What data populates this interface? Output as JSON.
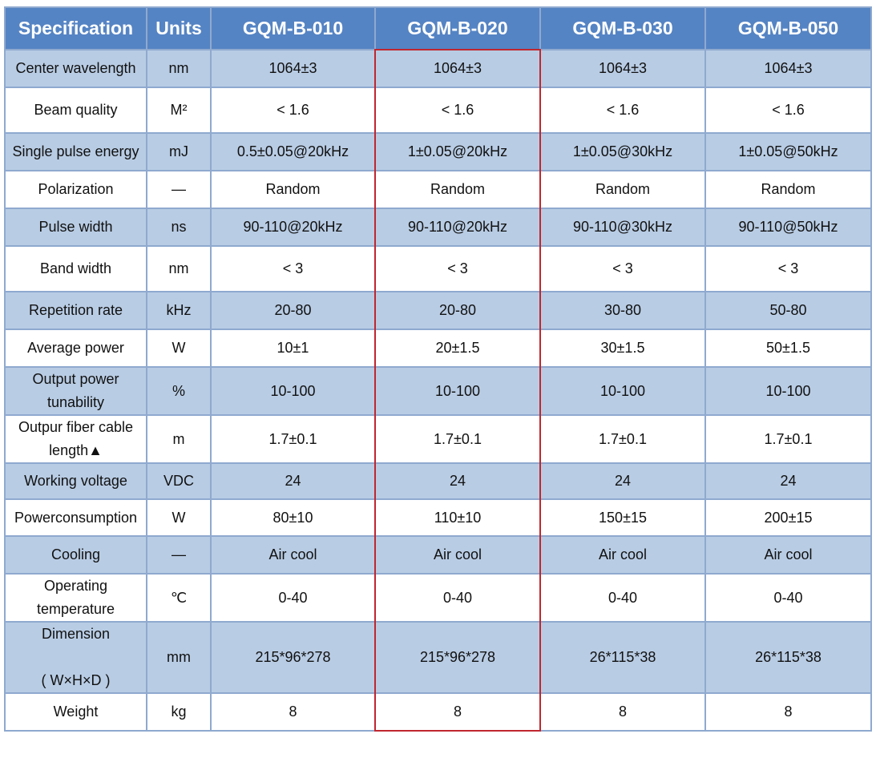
{
  "table": {
    "header": [
      "Specification",
      "Units",
      "GQM-B-010",
      "GQM-B-020",
      "GQM-B-030",
      "GQM-B-050"
    ],
    "highlight_column": 3,
    "rows": [
      [
        "Center wavelength",
        "nm",
        "1064±3",
        "1064±3",
        "1064±3",
        "1064±3"
      ],
      [
        "Beam quality",
        "M²",
        "< 1.6",
        "< 1.6",
        "< 1.6",
        "< 1.6"
      ],
      [
        "Single pulse energy",
        "mJ",
        "0.5±0.05@20kHz",
        "1±0.05@20kHz",
        "1±0.05@30kHz",
        "1±0.05@50kHz"
      ],
      [
        "Polarization",
        "—",
        "Random",
        "Random",
        "Random",
        "Random"
      ],
      [
        "Pulse width",
        "ns",
        "90-110@20kHz",
        "90-110@20kHz",
        "90-110@30kHz",
        "90-110@50kHz"
      ],
      [
        "Band width",
        "nm",
        "< 3",
        "< 3",
        "< 3",
        "< 3"
      ],
      [
        "Repetition rate",
        "kHz",
        "20-80",
        "20-80",
        "30-80",
        "50-80"
      ],
      [
        "Average power",
        "W",
        "10±1",
        "20±1.5",
        "30±1.5",
        "50±1.5"
      ],
      [
        "Output power\ntunability",
        "%",
        "10-100",
        "10-100",
        "10-100",
        "10-100"
      ],
      [
        "Outpur fiber cable\nlength▲",
        "m",
        "1.7±0.1",
        "1.7±0.1",
        "1.7±0.1",
        "1.7±0.1"
      ],
      [
        "Working voltage",
        "VDC",
        "24",
        "24",
        "24",
        "24"
      ],
      [
        "Powerconsumption",
        "W",
        "80±10",
        "110±10",
        "150±15",
        "200±15"
      ],
      [
        "Cooling",
        "—",
        "Air cool",
        "Air cool",
        "Air cool",
        "Air cool"
      ],
      [
        "Operating\ntemperature",
        "℃",
        "0-40",
        "0-40",
        "0-40",
        "0-40"
      ],
      [
        "Dimension\n\n( W×H×D )",
        "mm",
        "215*96*278",
        "215*96*278",
        "26*115*38",
        "26*115*38"
      ],
      [
        "Weight",
        "kg",
        "8",
        "8",
        "8",
        "8"
      ]
    ]
  }
}
